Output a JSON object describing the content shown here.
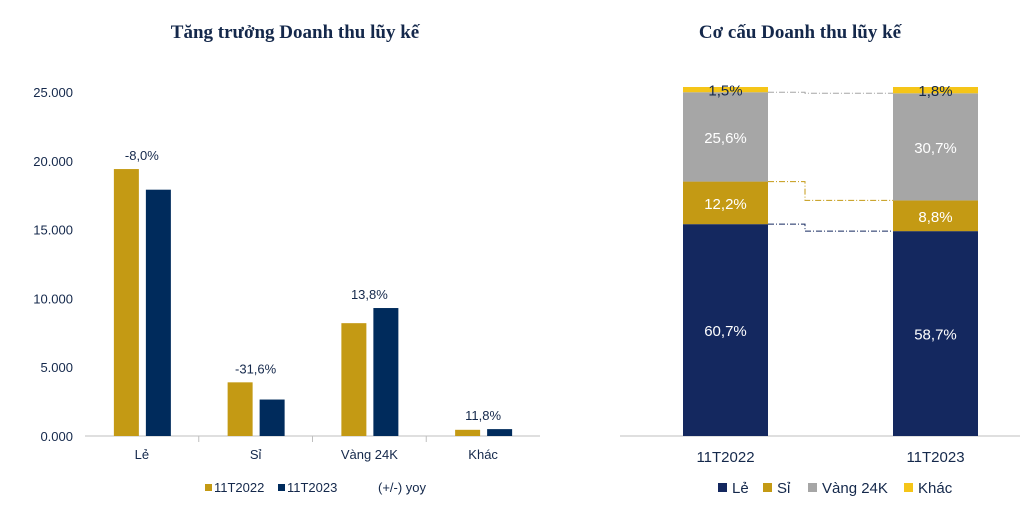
{
  "chart_data": [
    {
      "type": "bar",
      "title": "Tăng trưởng Doanh thu lũy kế",
      "categories": [
        "Lẻ",
        "Sỉ",
        "Vàng 24K",
        "Khác"
      ],
      "series": [
        {
          "name": "11T2022",
          "values": [
            19400,
            3900,
            8200,
            450
          ],
          "color": "#c49a14"
        },
        {
          "name": "11T2023",
          "values": [
            17900,
            2650,
            9300,
            500
          ],
          "color": "#002b5c"
        }
      ],
      "yoy_labels": [
        "-8,0%",
        "-31,6%",
        "13,8%",
        "11,8%"
      ],
      "yoy_legend": "(+/-) yoy",
      "yticks": [
        "25.000",
        "20.000",
        "15.000",
        "10.000",
        "5.000",
        "0.000"
      ],
      "ylim": [
        0,
        25000
      ],
      "legend_position": "bottom"
    },
    {
      "type": "bar",
      "stacked": true,
      "title": "Cơ cấu Doanh thu lũy kế",
      "categories": [
        "11T2022",
        "11T2023"
      ],
      "series": [
        {
          "name": "Lẻ",
          "values": [
            60.7,
            58.7
          ],
          "labels": [
            "60,7%",
            "58,7%"
          ],
          "color": "#14285f"
        },
        {
          "name": "Sỉ",
          "values": [
            12.2,
            8.8
          ],
          "labels": [
            "12,2%",
            "8,8%"
          ],
          "color": "#c49a14"
        },
        {
          "name": "Vàng 24K",
          "values": [
            25.6,
            30.7
          ],
          "labels": [
            "25,6%",
            "30,7%"
          ],
          "color": "#a6a6a6"
        },
        {
          "name": "Khác",
          "values": [
            1.5,
            1.8
          ],
          "labels": [
            "1,5%",
            "1,8%"
          ],
          "color": "#f5c518"
        }
      ],
      "legend_position": "bottom"
    }
  ]
}
